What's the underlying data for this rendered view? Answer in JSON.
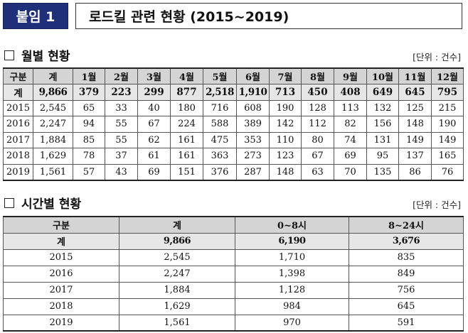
{
  "header": {
    "badge": "붙임 1",
    "title": "로드킬 관련 현황 (2015~2019)"
  },
  "monthly": {
    "title": "월별 현황",
    "unit": "[단위 : 건수]",
    "columns": [
      "구분",
      "계",
      "1월",
      "2월",
      "3월",
      "4월",
      "5월",
      "6월",
      "7월",
      "8월",
      "9월",
      "10월",
      "11월",
      "12월"
    ],
    "total": [
      "계",
      "9,866",
      "379",
      "223",
      "299",
      "877",
      "2,518",
      "1,910",
      "713",
      "450",
      "408",
      "649",
      "645",
      "795"
    ],
    "rows": [
      [
        "2015",
        "2,545",
        "65",
        "33",
        "40",
        "180",
        "716",
        "608",
        "190",
        "128",
        "113",
        "132",
        "125",
        "215"
      ],
      [
        "2016",
        "2,247",
        "94",
        "55",
        "67",
        "224",
        "588",
        "389",
        "142",
        "112",
        "82",
        "156",
        "148",
        "190"
      ],
      [
        "2017",
        "1,884",
        "85",
        "55",
        "62",
        "161",
        "475",
        "353",
        "110",
        "80",
        "74",
        "131",
        "149",
        "149"
      ],
      [
        "2018",
        "1,629",
        "78",
        "37",
        "61",
        "161",
        "363",
        "273",
        "123",
        "67",
        "69",
        "95",
        "137",
        "165"
      ],
      [
        "2019",
        "1,561",
        "57",
        "43",
        "69",
        "151",
        "376",
        "287",
        "148",
        "63",
        "70",
        "135",
        "86",
        "76"
      ]
    ]
  },
  "hourly": {
    "title": "시간별 현황",
    "unit": "[단위 : 건수]",
    "columns": [
      "구분",
      "계",
      "0~8시",
      "8~24시"
    ],
    "total": [
      "계",
      "9,866",
      "6,190",
      "3,676"
    ],
    "rows": [
      [
        "2015",
        "2,545",
        "1,710",
        "835"
      ],
      [
        "2016",
        "2,247",
        "1,398",
        "849"
      ],
      [
        "2017",
        "1,884",
        "1,128",
        "756"
      ],
      [
        "2018",
        "1,629",
        "984",
        "645"
      ],
      [
        "2019",
        "1,561",
        "970",
        "591"
      ]
    ]
  }
}
